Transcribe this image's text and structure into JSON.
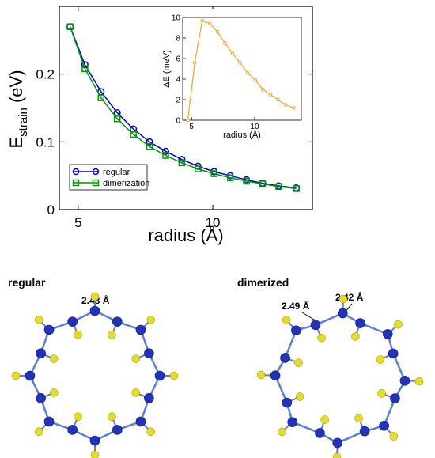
{
  "chart_data": [
    {
      "type": "line",
      "xlabel": "radius (Å)",
      "ylabel_main": "E",
      "ylabel_sub": "strain",
      "ylabel_unit": " (eV)",
      "xlim": [
        4.3,
        13.7
      ],
      "ylim": [
        0,
        0.3
      ],
      "xticks": [
        5,
        10
      ],
      "yticks": [
        0,
        0.1,
        0.2
      ],
      "ytick_labels": [
        "0",
        "0.1",
        "0.2"
      ],
      "legend_position": "bottom-left",
      "series": [
        {
          "name": "regular",
          "marker": "circle",
          "color": "#0000cc",
          "x": [
            4.7,
            5.25,
            5.85,
            6.45,
            7.05,
            7.65,
            8.25,
            8.85,
            9.45,
            10.05,
            10.65,
            11.25,
            11.85,
            12.45,
            13.1
          ],
          "y": [
            0.27,
            0.214,
            0.174,
            0.143,
            0.119,
            0.1,
            0.086,
            0.074,
            0.064,
            0.056,
            0.05,
            0.044,
            0.039,
            0.035,
            0.032
          ]
        },
        {
          "name": "dimerization",
          "marker": "square",
          "color": "#009900",
          "x": [
            4.7,
            5.25,
            5.85,
            6.45,
            7.05,
            7.65,
            8.25,
            8.85,
            9.45,
            10.05,
            10.65,
            11.25,
            11.85,
            12.45,
            13.1
          ],
          "y": [
            0.27,
            0.208,
            0.165,
            0.134,
            0.111,
            0.093,
            0.08,
            0.069,
            0.06,
            0.053,
            0.047,
            0.042,
            0.038,
            0.034,
            0.031
          ]
        }
      ]
    },
    {
      "type": "line",
      "xlabel": "radius (Å)",
      "ylabel": "ΔE (meV)",
      "xlim": [
        4.3,
        13.7
      ],
      "ylim": [
        0,
        10
      ],
      "xticks": [
        5,
        10
      ],
      "yticks": [
        0,
        2,
        4,
        6,
        8,
        10
      ],
      "series": [
        {
          "color": "#f5a623",
          "x": [
            4.7,
            5.25,
            5.85,
            6.45,
            7.05,
            7.65,
            8.25,
            8.85,
            9.45,
            10.05,
            10.65,
            11.25,
            11.85,
            12.45,
            13.1
          ],
          "y": [
            0.0,
            5.6,
            9.7,
            9.4,
            8.6,
            7.5,
            6.5,
            5.6,
            4.6,
            3.9,
            3.0,
            2.5,
            2.0,
            1.5,
            1.2
          ]
        }
      ]
    }
  ],
  "structures": {
    "regular": {
      "title": "regular",
      "bond_label": "2.48 Å"
    },
    "dimerized": {
      "title": "dimerized",
      "bond_label_a": "2.49 Å",
      "bond_label_b": "2.42 Å"
    },
    "colors": {
      "carbon": "#2233bb",
      "hydrogen": "#e6dd22",
      "bond": "#5b7fd6"
    }
  }
}
